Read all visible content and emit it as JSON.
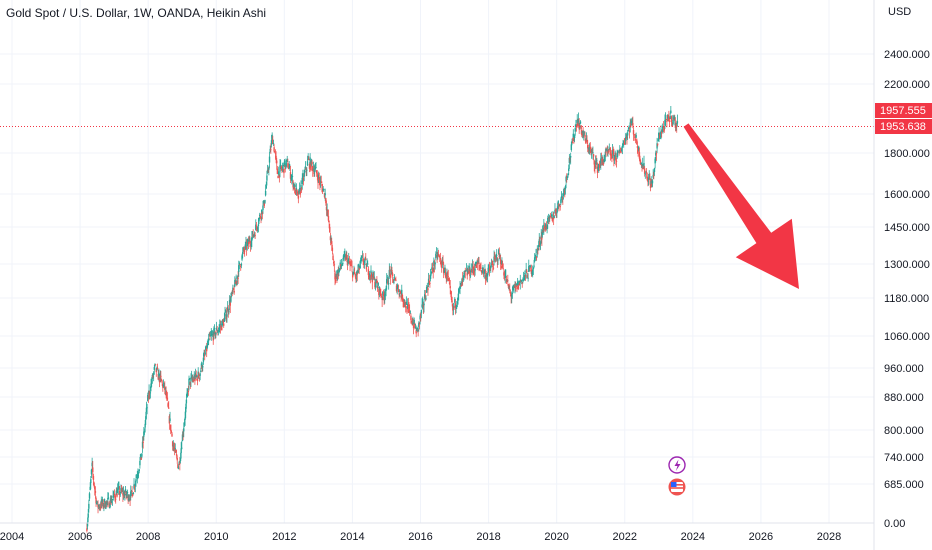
{
  "chart_data": {
    "type": "candlestick",
    "title": "Gold Spot / U.S. Dollar, 1W, OANDA, Heikin Ashi",
    "currency": "USD",
    "y_ticks": [
      2400,
      2200,
      1800,
      1600,
      1450,
      1300,
      1180,
      1060,
      960,
      880,
      800,
      740,
      685,
      0
    ],
    "y_tick_labels": [
      "2400.000",
      "2200.000",
      "1800.000",
      "1600.000",
      "1450.000",
      "1300.000",
      "1180.000",
      "1060.000",
      "960.000",
      "880.000",
      "800.000",
      "740.000",
      "685.000",
      "0.00"
    ],
    "y_scale": "log",
    "x_ticks": [
      2004,
      2006,
      2008,
      2010,
      2012,
      2014,
      2016,
      2018,
      2020,
      2022,
      2024,
      2026,
      2028
    ],
    "x_tick_labels": [
      "2004",
      "2006",
      "2008",
      "2010",
      "2012",
      "2014",
      "2016",
      "2018",
      "2020",
      "2022",
      "2024",
      "2026",
      "2028"
    ],
    "price_tags": [
      {
        "label": "1957.555",
        "value": 1957.555,
        "color": "#f23645"
      },
      {
        "label": "1953.638",
        "value": 1953.638,
        "color": "#f23645"
      }
    ],
    "current_price": 1953.638,
    "up_color": "#26a69a",
    "down_color": "#ef5350",
    "arrow_color": "#f23645",
    "grid": true,
    "path_points": [
      {
        "x": 2006.2,
        "y": 600
      },
      {
        "x": 2006.35,
        "y": 720
      },
      {
        "x": 2006.5,
        "y": 640
      },
      {
        "x": 2006.9,
        "y": 650
      },
      {
        "x": 2007.1,
        "y": 670
      },
      {
        "x": 2007.5,
        "y": 660
      },
      {
        "x": 2007.8,
        "y": 740
      },
      {
        "x": 2008.0,
        "y": 880
      },
      {
        "x": 2008.2,
        "y": 960
      },
      {
        "x": 2008.5,
        "y": 900
      },
      {
        "x": 2008.75,
        "y": 760
      },
      {
        "x": 2008.9,
        "y": 720
      },
      {
        "x": 2009.2,
        "y": 920
      },
      {
        "x": 2009.5,
        "y": 940
      },
      {
        "x": 2009.8,
        "y": 1050
      },
      {
        "x": 2010.2,
        "y": 1100
      },
      {
        "x": 2010.5,
        "y": 1200
      },
      {
        "x": 2010.8,
        "y": 1350
      },
      {
        "x": 2011.1,
        "y": 1420
      },
      {
        "x": 2011.4,
        "y": 1550
      },
      {
        "x": 2011.65,
        "y": 1900
      },
      {
        "x": 2011.8,
        "y": 1700
      },
      {
        "x": 2012.1,
        "y": 1750
      },
      {
        "x": 2012.4,
        "y": 1580
      },
      {
        "x": 2012.7,
        "y": 1760
      },
      {
        "x": 2012.9,
        "y": 1720
      },
      {
        "x": 2013.2,
        "y": 1600
      },
      {
        "x": 2013.5,
        "y": 1250
      },
      {
        "x": 2013.8,
        "y": 1330
      },
      {
        "x": 2014.1,
        "y": 1250
      },
      {
        "x": 2014.3,
        "y": 1320
      },
      {
        "x": 2014.7,
        "y": 1230
      },
      {
        "x": 2014.9,
        "y": 1180
      },
      {
        "x": 2015.1,
        "y": 1270
      },
      {
        "x": 2015.5,
        "y": 1180
      },
      {
        "x": 2015.9,
        "y": 1070
      },
      {
        "x": 2016.2,
        "y": 1220
      },
      {
        "x": 2016.5,
        "y": 1340
      },
      {
        "x": 2016.8,
        "y": 1250
      },
      {
        "x": 2016.95,
        "y": 1140
      },
      {
        "x": 2017.3,
        "y": 1260
      },
      {
        "x": 2017.7,
        "y": 1300
      },
      {
        "x": 2017.95,
        "y": 1260
      },
      {
        "x": 2018.3,
        "y": 1340
      },
      {
        "x": 2018.65,
        "y": 1190
      },
      {
        "x": 2018.95,
        "y": 1240
      },
      {
        "x": 2019.3,
        "y": 1290
      },
      {
        "x": 2019.6,
        "y": 1440
      },
      {
        "x": 2019.9,
        "y": 1500
      },
      {
        "x": 2020.2,
        "y": 1600
      },
      {
        "x": 2020.6,
        "y": 2000
      },
      {
        "x": 2020.9,
        "y": 1850
      },
      {
        "x": 2021.2,
        "y": 1730
      },
      {
        "x": 2021.5,
        "y": 1800
      },
      {
        "x": 2021.8,
        "y": 1780
      },
      {
        "x": 2022.2,
        "y": 1980
      },
      {
        "x": 2022.5,
        "y": 1750
      },
      {
        "x": 2022.8,
        "y": 1640
      },
      {
        "x": 2023.0,
        "y": 1900
      },
      {
        "x": 2023.35,
        "y": 2020
      },
      {
        "x": 2023.55,
        "y": 1954
      }
    ],
    "arrow": {
      "from": {
        "x": 2023.8,
        "y": 1950
      },
      "to": {
        "x": 2027.0,
        "y": 1180
      }
    },
    "event_icons": [
      "lightning-icon",
      "us-flag-icon"
    ]
  }
}
